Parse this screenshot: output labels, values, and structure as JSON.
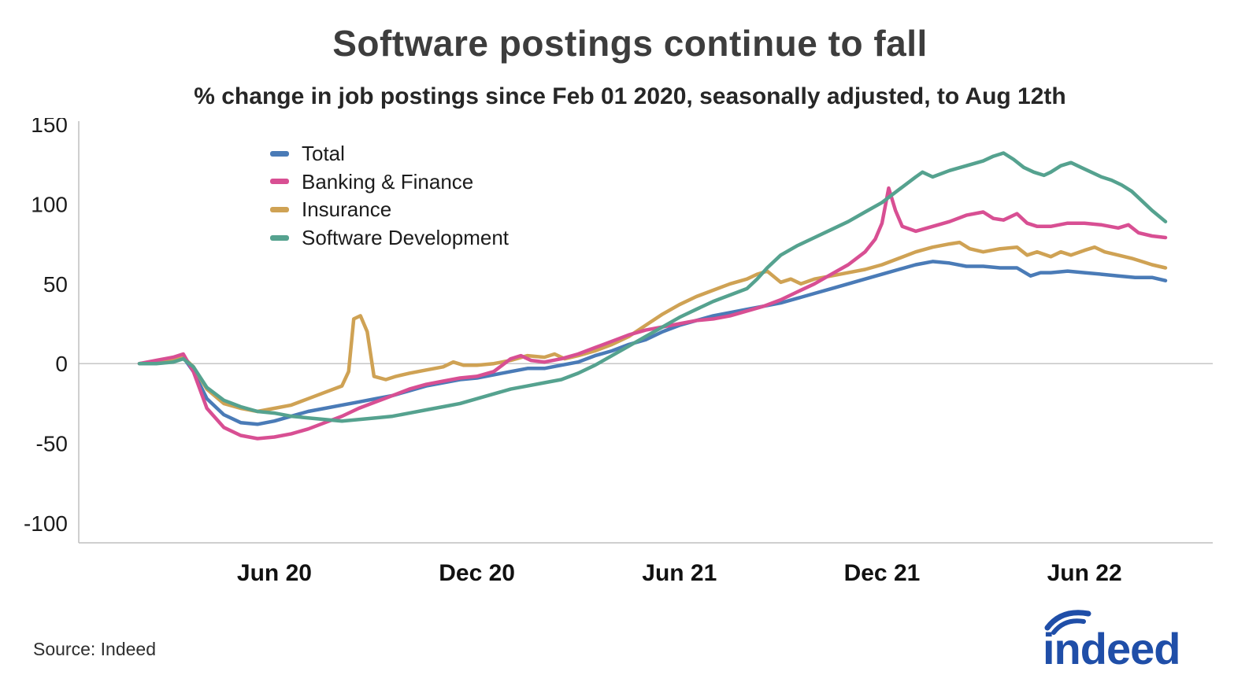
{
  "header": {
    "title": "Software postings continue to fall",
    "subtitle": "% change in job postings since Feb 01 2020, seasonally adjusted, to Aug 12th"
  },
  "footer": {
    "source": "Source: Indeed",
    "logo_text": "indeed",
    "logo_color": "#1f4ea8"
  },
  "chart_data": {
    "type": "line",
    "title": "Software postings continue to fall",
    "subtitle": "% change in job postings since Feb 01 2020, seasonally adjusted, to Aug 12th",
    "x_unit": "months since Feb 01 2020",
    "x_domain": [
      0,
      30.4
    ],
    "ylim": [
      -100,
      150
    ],
    "ylabel": "% change in job postings",
    "y_ticks": [
      150,
      100,
      50,
      0,
      -50,
      -100
    ],
    "x_ticks": [
      {
        "pos": 4,
        "label": "Jun 20"
      },
      {
        "pos": 10,
        "label": "Dec 20"
      },
      {
        "pos": 16,
        "label": "Jun 21"
      },
      {
        "pos": 22,
        "label": "Dec 21"
      },
      {
        "pos": 28,
        "label": "Jun 22"
      }
    ],
    "grid": false,
    "zero_line": true,
    "legend_position": "top-left-inside",
    "draw_order": [
      0,
      2,
      1,
      3
    ],
    "series": [
      {
        "name": "Total",
        "color": "#4a7bb7",
        "points": [
          [
            0,
            0
          ],
          [
            0.5,
            1
          ],
          [
            1,
            3
          ],
          [
            1.3,
            4
          ],
          [
            1.6,
            -5
          ],
          [
            2,
            -22
          ],
          [
            2.5,
            -32
          ],
          [
            3,
            -37
          ],
          [
            3.5,
            -38
          ],
          [
            4,
            -36
          ],
          [
            4.5,
            -33
          ],
          [
            5,
            -30
          ],
          [
            5.5,
            -28
          ],
          [
            6,
            -26
          ],
          [
            6.5,
            -24
          ],
          [
            7,
            -22
          ],
          [
            7.5,
            -20
          ],
          [
            8,
            -17
          ],
          [
            8.5,
            -14
          ],
          [
            9,
            -12
          ],
          [
            9.5,
            -10
          ],
          [
            10,
            -9
          ],
          [
            10.5,
            -7
          ],
          [
            11,
            -5
          ],
          [
            11.5,
            -3
          ],
          [
            12,
            -3
          ],
          [
            12.5,
            -1
          ],
          [
            13,
            1
          ],
          [
            13.5,
            5
          ],
          [
            14,
            8
          ],
          [
            14.5,
            12
          ],
          [
            15,
            15
          ],
          [
            15.5,
            20
          ],
          [
            16,
            24
          ],
          [
            16.5,
            27
          ],
          [
            17,
            30
          ],
          [
            17.5,
            32
          ],
          [
            18,
            34
          ],
          [
            18.5,
            36
          ],
          [
            19,
            38
          ],
          [
            19.5,
            41
          ],
          [
            20,
            44
          ],
          [
            20.5,
            47
          ],
          [
            21,
            50
          ],
          [
            21.5,
            53
          ],
          [
            22,
            56
          ],
          [
            22.5,
            59
          ],
          [
            23,
            62
          ],
          [
            23.5,
            64
          ],
          [
            24,
            63
          ],
          [
            24.5,
            61
          ],
          [
            25,
            61
          ],
          [
            25.5,
            60
          ],
          [
            26,
            60
          ],
          [
            26.4,
            55
          ],
          [
            26.7,
            57
          ],
          [
            27,
            57
          ],
          [
            27.5,
            58
          ],
          [
            28,
            57
          ],
          [
            28.5,
            56
          ],
          [
            29,
            55
          ],
          [
            29.5,
            54
          ],
          [
            30,
            54
          ],
          [
            30.4,
            52
          ]
        ]
      },
      {
        "name": "Banking & Finance",
        "color": "#d84f93",
        "points": [
          [
            0,
            0
          ],
          [
            0.5,
            2
          ],
          [
            1,
            4
          ],
          [
            1.3,
            6
          ],
          [
            1.6,
            -5
          ],
          [
            2,
            -28
          ],
          [
            2.5,
            -40
          ],
          [
            3,
            -45
          ],
          [
            3.5,
            -47
          ],
          [
            4,
            -46
          ],
          [
            4.5,
            -44
          ],
          [
            5,
            -41
          ],
          [
            5.5,
            -37
          ],
          [
            6,
            -33
          ],
          [
            6.5,
            -28
          ],
          [
            7,
            -24
          ],
          [
            7.5,
            -20
          ],
          [
            8,
            -16
          ],
          [
            8.5,
            -13
          ],
          [
            9,
            -11
          ],
          [
            9.5,
            -9
          ],
          [
            10,
            -8
          ],
          [
            10.5,
            -5
          ],
          [
            11,
            3
          ],
          [
            11.3,
            5
          ],
          [
            11.6,
            2
          ],
          [
            12,
            1
          ],
          [
            12.5,
            3
          ],
          [
            13,
            6
          ],
          [
            13.5,
            10
          ],
          [
            14,
            14
          ],
          [
            14.5,
            18
          ],
          [
            15,
            21
          ],
          [
            15.5,
            23
          ],
          [
            16,
            25
          ],
          [
            16.5,
            27
          ],
          [
            17,
            28
          ],
          [
            17.5,
            30
          ],
          [
            18,
            33
          ],
          [
            18.5,
            36
          ],
          [
            19,
            40
          ],
          [
            19.5,
            45
          ],
          [
            20,
            50
          ],
          [
            20.5,
            56
          ],
          [
            21,
            62
          ],
          [
            21.5,
            70
          ],
          [
            21.8,
            78
          ],
          [
            22,
            88
          ],
          [
            22.2,
            110
          ],
          [
            22.4,
            96
          ],
          [
            22.6,
            86
          ],
          [
            23,
            83
          ],
          [
            23.5,
            86
          ],
          [
            24,
            89
          ],
          [
            24.5,
            93
          ],
          [
            25,
            95
          ],
          [
            25.3,
            91
          ],
          [
            25.6,
            90
          ],
          [
            26,
            94
          ],
          [
            26.3,
            88
          ],
          [
            26.6,
            86
          ],
          [
            27,
            86
          ],
          [
            27.5,
            88
          ],
          [
            28,
            88
          ],
          [
            28.5,
            87
          ],
          [
            29,
            85
          ],
          [
            29.3,
            87
          ],
          [
            29.6,
            82
          ],
          [
            30,
            80
          ],
          [
            30.4,
            79
          ]
        ]
      },
      {
        "name": "Insurance",
        "color": "#cfa254",
        "points": [
          [
            0,
            0
          ],
          [
            0.5,
            1
          ],
          [
            1,
            2
          ],
          [
            1.3,
            4
          ],
          [
            1.6,
            -2
          ],
          [
            2,
            -16
          ],
          [
            2.5,
            -25
          ],
          [
            3,
            -28
          ],
          [
            3.5,
            -30
          ],
          [
            4,
            -28
          ],
          [
            4.5,
            -26
          ],
          [
            5,
            -22
          ],
          [
            5.5,
            -18
          ],
          [
            6,
            -14
          ],
          [
            6.2,
            -5
          ],
          [
            6.35,
            28
          ],
          [
            6.55,
            30
          ],
          [
            6.75,
            20
          ],
          [
            6.95,
            -8
          ],
          [
            7.3,
            -10
          ],
          [
            7.6,
            -8
          ],
          [
            8,
            -6
          ],
          [
            8.5,
            -4
          ],
          [
            9,
            -2
          ],
          [
            9.3,
            1
          ],
          [
            9.6,
            -1
          ],
          [
            10,
            -1
          ],
          [
            10.5,
            0
          ],
          [
            11,
            2
          ],
          [
            11.5,
            5
          ],
          [
            12,
            4
          ],
          [
            12.3,
            6
          ],
          [
            12.6,
            3
          ],
          [
            13,
            5
          ],
          [
            13.5,
            8
          ],
          [
            14,
            12
          ],
          [
            14.5,
            17
          ],
          [
            15,
            24
          ],
          [
            15.5,
            31
          ],
          [
            16,
            37
          ],
          [
            16.5,
            42
          ],
          [
            17,
            46
          ],
          [
            17.5,
            50
          ],
          [
            18,
            53
          ],
          [
            18.3,
            56
          ],
          [
            18.6,
            58
          ],
          [
            19,
            51
          ],
          [
            19.3,
            53
          ],
          [
            19.6,
            50
          ],
          [
            20,
            53
          ],
          [
            20.5,
            55
          ],
          [
            21,
            57
          ],
          [
            21.5,
            59
          ],
          [
            22,
            62
          ],
          [
            22.5,
            66
          ],
          [
            23,
            70
          ],
          [
            23.5,
            73
          ],
          [
            24,
            75
          ],
          [
            24.3,
            76
          ],
          [
            24.6,
            72
          ],
          [
            25,
            70
          ],
          [
            25.5,
            72
          ],
          [
            26,
            73
          ],
          [
            26.3,
            68
          ],
          [
            26.6,
            70
          ],
          [
            27,
            67
          ],
          [
            27.3,
            70
          ],
          [
            27.6,
            68
          ],
          [
            28,
            71
          ],
          [
            28.3,
            73
          ],
          [
            28.6,
            70
          ],
          [
            29,
            68
          ],
          [
            29.4,
            66
          ],
          [
            29.7,
            64
          ],
          [
            30,
            62
          ],
          [
            30.4,
            60
          ]
        ]
      },
      {
        "name": "Software Development",
        "color": "#55a28f",
        "points": [
          [
            0,
            0
          ],
          [
            0.5,
            0
          ],
          [
            1,
            1
          ],
          [
            1.3,
            3
          ],
          [
            1.6,
            -2
          ],
          [
            2,
            -15
          ],
          [
            2.5,
            -23
          ],
          [
            3,
            -27
          ],
          [
            3.5,
            -30
          ],
          [
            4,
            -31
          ],
          [
            4.5,
            -33
          ],
          [
            5,
            -34
          ],
          [
            5.5,
            -35
          ],
          [
            6,
            -36
          ],
          [
            6.5,
            -35
          ],
          [
            7,
            -34
          ],
          [
            7.5,
            -33
          ],
          [
            8,
            -31
          ],
          [
            8.5,
            -29
          ],
          [
            9,
            -27
          ],
          [
            9.5,
            -25
          ],
          [
            10,
            -22
          ],
          [
            10.5,
            -19
          ],
          [
            11,
            -16
          ],
          [
            11.5,
            -14
          ],
          [
            12,
            -12
          ],
          [
            12.5,
            -10
          ],
          [
            13,
            -6
          ],
          [
            13.5,
            -1
          ],
          [
            14,
            5
          ],
          [
            14.5,
            11
          ],
          [
            15,
            17
          ],
          [
            15.5,
            23
          ],
          [
            16,
            29
          ],
          [
            16.5,
            34
          ],
          [
            17,
            39
          ],
          [
            17.5,
            43
          ],
          [
            18,
            47
          ],
          [
            18.3,
            53
          ],
          [
            18.6,
            60
          ],
          [
            19,
            68
          ],
          [
            19.5,
            74
          ],
          [
            20,
            79
          ],
          [
            20.5,
            84
          ],
          [
            21,
            89
          ],
          [
            21.5,
            95
          ],
          [
            22,
            101
          ],
          [
            22.5,
            109
          ],
          [
            23,
            117
          ],
          [
            23.2,
            120
          ],
          [
            23.5,
            117
          ],
          [
            24,
            121
          ],
          [
            24.5,
            124
          ],
          [
            25,
            127
          ],
          [
            25.3,
            130
          ],
          [
            25.6,
            132
          ],
          [
            25.9,
            128
          ],
          [
            26.2,
            123
          ],
          [
            26.5,
            120
          ],
          [
            26.8,
            118
          ],
          [
            27,
            120
          ],
          [
            27.3,
            124
          ],
          [
            27.6,
            126
          ],
          [
            27.9,
            123
          ],
          [
            28.2,
            120
          ],
          [
            28.5,
            117
          ],
          [
            28.8,
            115
          ],
          [
            29.1,
            112
          ],
          [
            29.4,
            108
          ],
          [
            29.7,
            102
          ],
          [
            30,
            96
          ],
          [
            30.4,
            89
          ]
        ]
      }
    ]
  }
}
